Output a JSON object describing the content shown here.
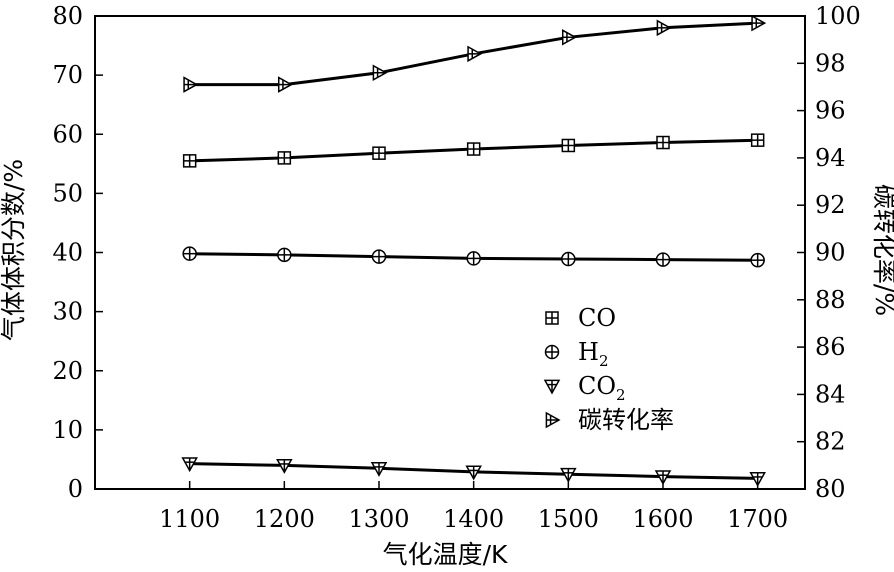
{
  "chart_data": {
    "type": "line",
    "x": [
      1100,
      1200,
      1300,
      1400,
      1500,
      1600,
      1700
    ],
    "xlabel": "气化温度/K",
    "ylabel_left": "气体体积分数/%",
    "ylabel_right": "碳转化率/%",
    "xlim": [
      1000,
      1750
    ],
    "ylim_left": [
      0,
      80
    ],
    "ylim_right": [
      80,
      100
    ],
    "x_ticks": [
      1100,
      1200,
      1300,
      1400,
      1500,
      1600,
      1700
    ],
    "y_ticks_left": [
      0,
      10,
      20,
      30,
      40,
      50,
      60,
      70,
      80
    ],
    "y_ticks_right": [
      80,
      82,
      84,
      86,
      88,
      90,
      92,
      94,
      96,
      98,
      100
    ],
    "grid": false,
    "legend_position": "center-right",
    "series": [
      {
        "name": "CO",
        "label_main": "CO",
        "label_sub": "",
        "axis": "left",
        "marker": "square-plus",
        "values": [
          55.5,
          56.0,
          56.8,
          57.5,
          58.1,
          58.6,
          59.0
        ]
      },
      {
        "name": "H2",
        "label_main": "H",
        "label_sub": "2",
        "axis": "left",
        "marker": "circle-plus",
        "values": [
          39.8,
          39.6,
          39.3,
          39.0,
          38.9,
          38.8,
          38.7
        ]
      },
      {
        "name": "CO2",
        "label_main": "CO",
        "label_sub": "2",
        "axis": "left",
        "marker": "triangle-down",
        "values": [
          4.3,
          4.0,
          3.5,
          2.9,
          2.5,
          2.1,
          1.8
        ]
      },
      {
        "name": "碳转化率",
        "label_main": "碳转化率",
        "label_sub": "",
        "axis": "right",
        "marker": "triangle-right",
        "values": [
          97.1,
          97.1,
          97.6,
          98.4,
          99.1,
          99.5,
          99.7
        ]
      }
    ]
  }
}
